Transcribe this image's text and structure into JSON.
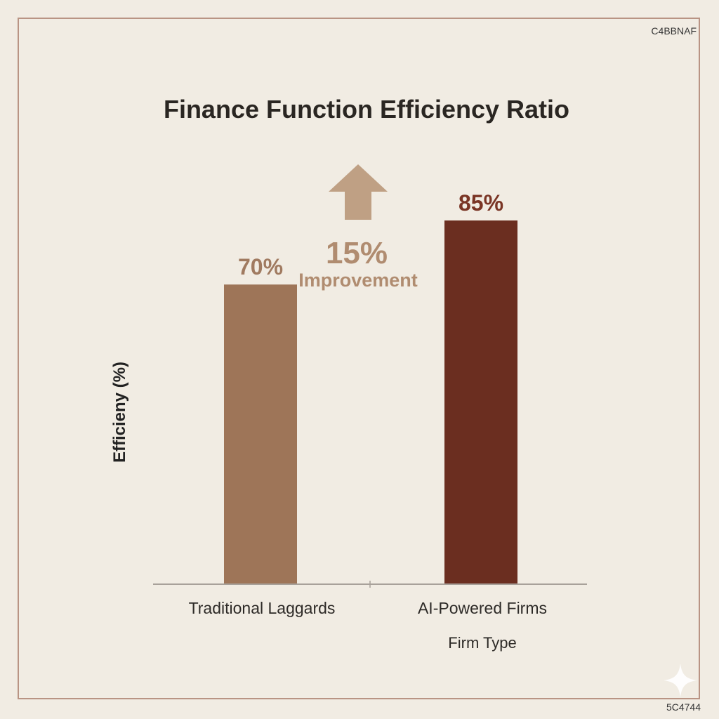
{
  "page": {
    "code_top": "C4BBNAF",
    "code_bottom": "5C4744"
  },
  "chart_data": {
    "type": "bar",
    "title": "Finance Function Efficiency Ratio",
    "xlabel": "Firm Type",
    "ylabel": "Efficieny (%)",
    "categories": [
      "Traditional Laggards",
      "AI-Powered Firms"
    ],
    "values": [
      70,
      85
    ],
    "value_labels": [
      "70%",
      "85%"
    ],
    "colors": [
      "#9e7558",
      "#6b2e20"
    ],
    "label_colors": [
      "#a07a60",
      "#7a3525"
    ],
    "ylim": [
      0,
      85
    ],
    "grid": false,
    "annotation": {
      "value": "15%",
      "label": "Improvement",
      "color": "#b08c70",
      "icon": "up-arrow-icon"
    }
  }
}
